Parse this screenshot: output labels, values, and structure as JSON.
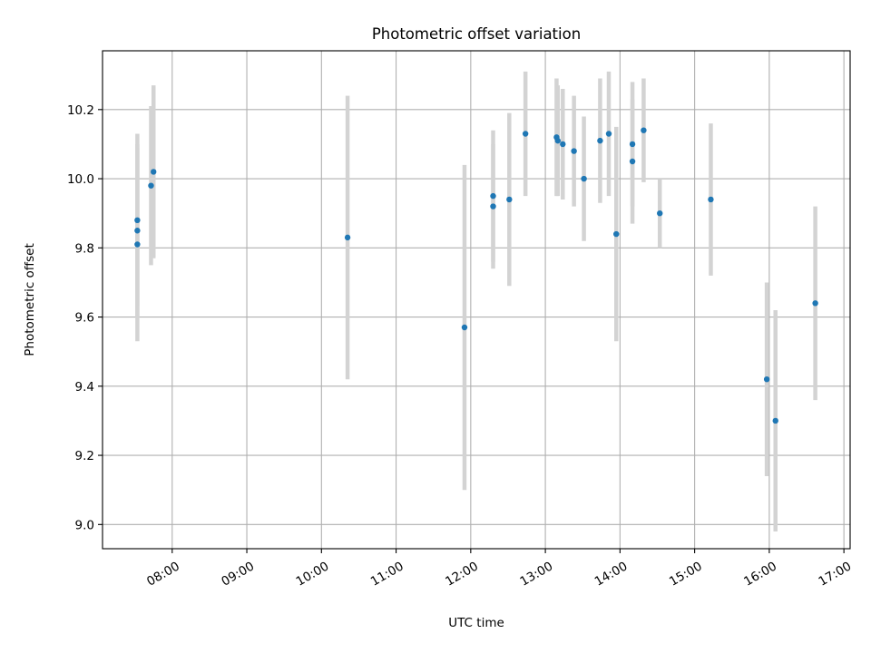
{
  "chart_data": {
    "type": "scatter",
    "title": "Photometric offset variation",
    "xlabel": "UTC time",
    "ylabel": "Photometric offset",
    "x_unit": "UTC time",
    "xlim": [
      "07:04",
      "17:05"
    ],
    "ylim": [
      8.93,
      10.37
    ],
    "x_ticks": [
      "08:00",
      "09:00",
      "10:00",
      "11:00",
      "12:00",
      "13:00",
      "14:00",
      "15:00",
      "16:00",
      "17:00"
    ],
    "y_ticks": [
      9.0,
      9.2,
      9.4,
      9.6,
      9.8,
      10.0,
      10.2
    ],
    "y_tick_labels": [
      "9.0",
      "9.2",
      "9.4",
      "9.6",
      "9.8",
      "10.0",
      "10.2"
    ],
    "grid": true,
    "marker_color": "#1f77b4",
    "error_color": "#d3d3d3",
    "points": [
      {
        "x": "07:32",
        "y": 9.88,
        "yerr": 0.25
      },
      {
        "x": "07:32",
        "y": 9.85,
        "yerr": 0.25
      },
      {
        "x": "07:32",
        "y": 9.81,
        "yerr": 0.28
      },
      {
        "x": "07:43",
        "y": 9.98,
        "yerr": 0.23
      },
      {
        "x": "07:45",
        "y": 10.02,
        "yerr": 0.25
      },
      {
        "x": "10:21",
        "y": 9.83,
        "yerr": 0.41
      },
      {
        "x": "11:55",
        "y": 9.57,
        "yerr": 0.47
      },
      {
        "x": "12:18",
        "y": 9.95,
        "yerr": 0.19
      },
      {
        "x": "12:18",
        "y": 9.92,
        "yerr": 0.18
      },
      {
        "x": "12:31",
        "y": 9.94,
        "yerr": 0.25
      },
      {
        "x": "12:44",
        "y": 10.13,
        "yerr": 0.18
      },
      {
        "x": "13:09",
        "y": 10.12,
        "yerr": 0.17
      },
      {
        "x": "13:10",
        "y": 10.11,
        "yerr": 0.16
      },
      {
        "x": "13:14",
        "y": 10.1,
        "yerr": 0.16
      },
      {
        "x": "13:23",
        "y": 10.08,
        "yerr": 0.16
      },
      {
        "x": "13:31",
        "y": 10.0,
        "yerr": 0.18
      },
      {
        "x": "13:44",
        "y": 10.11,
        "yerr": 0.18
      },
      {
        "x": "13:51",
        "y": 10.13,
        "yerr": 0.18
      },
      {
        "x": "13:57",
        "y": 9.84,
        "yerr": 0.31
      },
      {
        "x": "14:10",
        "y": 10.1,
        "yerr": 0.18
      },
      {
        "x": "14:10",
        "y": 10.05,
        "yerr": 0.18
      },
      {
        "x": "14:19",
        "y": 10.14,
        "yerr": 0.15
      },
      {
        "x": "14:32",
        "y": 9.9,
        "yerr": 0.1
      },
      {
        "x": "15:13",
        "y": 9.94,
        "yerr": 0.22
      },
      {
        "x": "15:58",
        "y": 9.42,
        "yerr": 0.28
      },
      {
        "x": "16:05",
        "y": 9.3,
        "yerr": 0.32
      },
      {
        "x": "16:37",
        "y": 9.64,
        "yerr": 0.28
      }
    ]
  }
}
